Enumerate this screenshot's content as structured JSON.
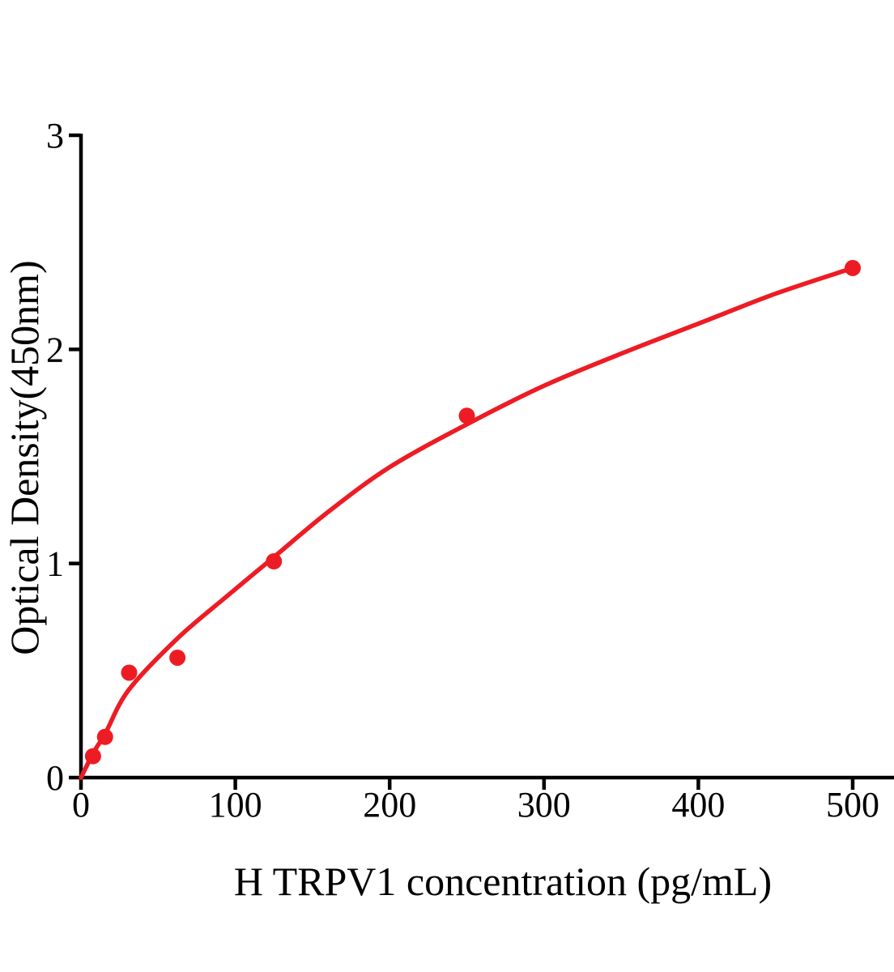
{
  "figure": {
    "background": "#ffffff"
  },
  "chart_data": {
    "type": "scatter",
    "title": "",
    "xlabel": "H TRPV1 concentration (pg/mL)",
    "ylabel": "Optical Density(450nm)",
    "xlim": [
      0,
      527
    ],
    "ylim": [
      0,
      3
    ],
    "x_ticks": [
      0,
      100,
      200,
      300,
      400,
      500
    ],
    "y_ticks": [
      0,
      1,
      2,
      3
    ],
    "grid": false,
    "legend": null,
    "axis_color": "#000000",
    "series": [
      {
        "name": "fit-curve",
        "type": "line",
        "color": "#ED1C24",
        "points": [
          [
            0,
            0
          ],
          [
            8,
            0.115
          ],
          [
            16,
            0.21
          ],
          [
            31,
            0.41
          ],
          [
            62.5,
            0.65
          ],
          [
            95,
            0.85
          ],
          [
            125,
            1.03
          ],
          [
            160,
            1.24
          ],
          [
            200,
            1.45
          ],
          [
            250,
            1.65
          ],
          [
            300,
            1.83
          ],
          [
            350,
            1.98
          ],
          [
            400,
            2.12
          ],
          [
            450,
            2.26
          ],
          [
            500,
            2.38
          ]
        ]
      },
      {
        "name": "standard-points",
        "type": "scatter",
        "color": "#ED1C24",
        "points": [
          [
            7.8,
            0.1
          ],
          [
            15.6,
            0.19
          ],
          [
            31.2,
            0.49
          ],
          [
            62.5,
            0.56
          ],
          [
            125,
            1.01
          ],
          [
            250,
            1.69
          ],
          [
            500,
            2.38
          ]
        ]
      }
    ]
  }
}
